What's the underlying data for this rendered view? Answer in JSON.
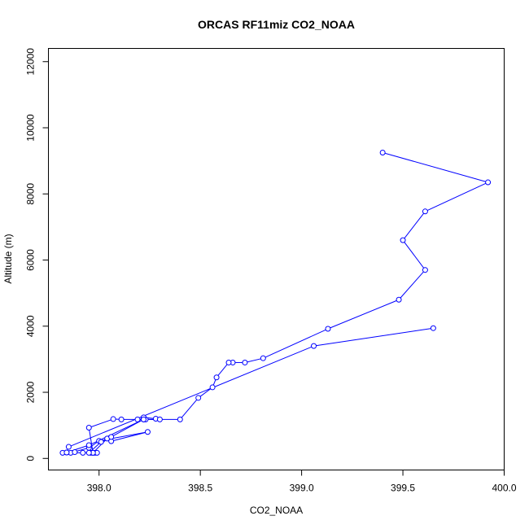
{
  "chart_data": {
    "type": "line",
    "title": "ORCAS RF11miz CO2_NOAA",
    "xlabel": "CO2_NOAA",
    "ylabel": "Altitude (m)",
    "xlim": [
      397.75,
      400.0
    ],
    "ylim": [
      -350,
      12400
    ],
    "xticks": [
      "398.0",
      "398.5",
      "399.0",
      "399.5",
      "400.0"
    ],
    "xtick_values": [
      398.0,
      398.5,
      399.0,
      399.5,
      400.0
    ],
    "yticks": [
      "0",
      "2000",
      "4000",
      "6000",
      "8000",
      "10000",
      "12000"
    ],
    "ytick_values": [
      0,
      2000,
      4000,
      6000,
      8000,
      10000,
      12000
    ],
    "grid": false,
    "legend": "none",
    "color": "#0000ff",
    "series": [
      {
        "x": [
          399.4,
          399.92,
          399.61,
          399.5,
          399.61,
          399.48,
          399.13,
          398.81,
          398.72,
          398.66,
          398.64,
          398.58,
          398.56,
          398.49,
          398.4,
          398.22,
          398.19,
          398.23,
          398.22,
          398.28,
          398.3,
          398.11,
          398.07,
          397.95,
          397.97,
          398.04,
          398.06,
          398.24,
          398.0,
          397.95,
          397.86,
          397.88,
          397.84,
          397.82,
          397.92,
          397.96,
          397.98,
          397.99,
          397.97,
          397.95,
          398.01,
          398.06,
          398.22,
          397.95,
          397.84,
          397.85,
          399.06,
          399.65
        ],
        "y": [
          9250,
          8350,
          7470,
          6600,
          5700,
          4800,
          3920,
          3030,
          2900,
          2900,
          2900,
          2450,
          2150,
          1830,
          1180,
          1180,
          1180,
          1180,
          1240,
          1200,
          1180,
          1180,
          1190,
          930,
          170,
          600,
          520,
          800,
          530,
          320,
          170,
          190,
          180,
          170,
          170,
          170,
          170,
          170,
          170,
          170,
          500,
          650,
          1180,
          400,
          180,
          350,
          3400,
          3940
        ]
      }
    ]
  }
}
